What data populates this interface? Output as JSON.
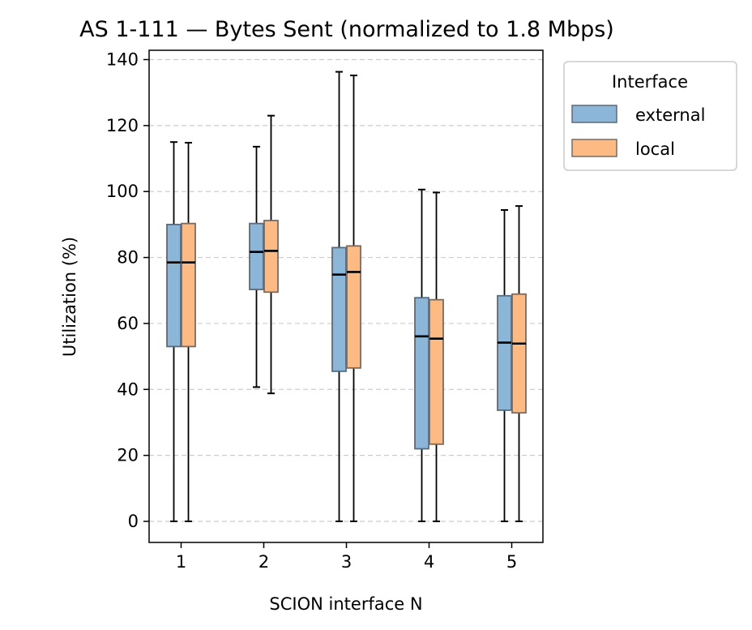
{
  "chart_data": {
    "type": "box",
    "title": "AS 1-111 — Bytes Sent (normalized to 1.8 Mbps)",
    "xlabel": "SCION interface N",
    "ylabel": "Utilization (%)",
    "categories": [
      "1",
      "2",
      "3",
      "4",
      "5"
    ],
    "yticks": [
      "0",
      "20",
      "40",
      "60",
      "80",
      "100",
      "120",
      "140"
    ],
    "ylim": [
      -7,
      143
    ],
    "grid": "y-dashed",
    "legend": {
      "title": "Interface",
      "placement": "outside-top-right",
      "entries": [
        "external",
        "local"
      ]
    },
    "series": [
      {
        "name": "external",
        "color": "#8cb6d8",
        "edge": "#5a6b7c",
        "boxes": [
          {
            "min": 0,
            "q1": 53,
            "median": 78.5,
            "q3": 90,
            "max": 115
          },
          {
            "min": 40.7,
            "q1": 70.3,
            "median": 81.7,
            "q3": 90.3,
            "max": 113.6
          },
          {
            "min": 0,
            "q1": 45.5,
            "median": 74.8,
            "q3": 83,
            "max": 136.3
          },
          {
            "min": 0,
            "q1": 22,
            "median": 56.1,
            "q3": 67.8,
            "max": 100.6
          },
          {
            "min": 0,
            "q1": 33.7,
            "median": 54.2,
            "q3": 68.4,
            "max": 94.4
          }
        ]
      },
      {
        "name": "local",
        "color": "#fdbb83",
        "edge": "#7d6a5c",
        "boxes": [
          {
            "min": 0,
            "q1": 53,
            "median": 78.5,
            "q3": 90.3,
            "max": 114.8
          },
          {
            "min": 38.8,
            "q1": 69.5,
            "median": 82,
            "q3": 91.2,
            "max": 123
          },
          {
            "min": 0,
            "q1": 46.5,
            "median": 75.6,
            "q3": 83.5,
            "max": 135.2
          },
          {
            "min": 0,
            "q1": 23.4,
            "median": 55.4,
            "q3": 67.2,
            "max": 99.7
          },
          {
            "min": 0,
            "q1": 32.9,
            "median": 53.9,
            "q3": 68.9,
            "max": 95.6
          }
        ]
      }
    ]
  }
}
